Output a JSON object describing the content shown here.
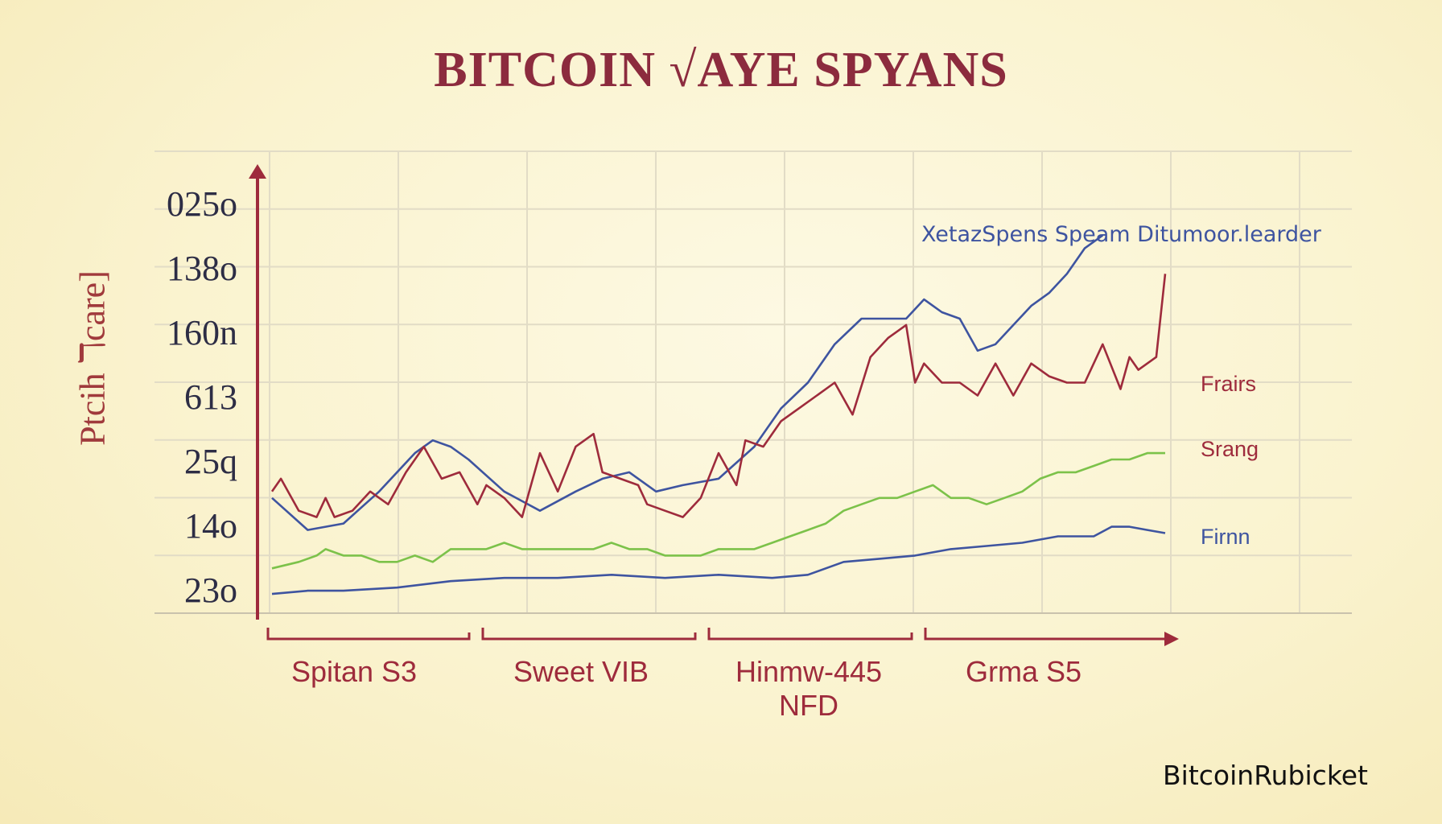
{
  "chart_data": {
    "type": "line",
    "title": "BITCOIN √AYE SPYANS",
    "ylabel": "Ptcih ℸcare]",
    "y_ticks": [
      "025o",
      "138o",
      "160n",
      "613",
      "25q",
      "14o",
      "23o"
    ],
    "x_groups": [
      {
        "label": "Spitan S3"
      },
      {
        "label": "Sweet VIB"
      },
      {
        "label": "Hinmw-445\nNFD"
      },
      {
        "label": "Grma S5"
      }
    ],
    "ylim": [
      0,
      7
    ],
    "xlim": [
      0,
      100
    ],
    "grid": true,
    "series": [
      {
        "name": "XetazSpens  Speam Ditumoor.learder",
        "color": "#3e54a0",
        "x": [
          0,
          4,
          8,
          12,
          16,
          18,
          20,
          22,
          26,
          30,
          34,
          37,
          40,
          43,
          46,
          50,
          54,
          57,
          60,
          63,
          66,
          69,
          71,
          73,
          75,
          77,
          79,
          81,
          83,
          85,
          87,
          89,
          91,
          93
        ],
        "y": [
          1.8,
          1.3,
          1.4,
          1.9,
          2.5,
          2.7,
          2.6,
          2.4,
          1.9,
          1.6,
          1.9,
          2.1,
          2.2,
          1.9,
          2.0,
          2.1,
          2.6,
          3.2,
          3.6,
          4.2,
          4.6,
          4.6,
          4.6,
          4.9,
          4.7,
          4.6,
          4.1,
          4.2,
          4.5,
          4.8,
          5.0,
          5.3,
          5.7,
          5.9
        ]
      },
      {
        "name": "Frairs",
        "color": "#9e2b3c",
        "x": [
          0,
          1,
          3,
          5,
          6,
          7,
          9,
          11,
          13,
          15,
          17,
          19,
          21,
          23,
          24,
          26,
          28,
          30,
          32,
          34,
          36,
          37,
          39,
          41,
          42,
          44,
          46,
          48,
          50,
          52,
          53,
          55,
          57,
          59,
          61,
          63,
          65,
          67,
          69,
          71,
          72,
          73,
          75,
          77,
          79,
          81,
          83,
          85,
          87,
          89,
          91,
          93,
          95,
          96,
          97,
          99,
          100
        ],
        "y": [
          1.9,
          2.1,
          1.6,
          1.5,
          1.8,
          1.5,
          1.6,
          1.9,
          1.7,
          2.2,
          2.6,
          2.1,
          2.2,
          1.7,
          2.0,
          1.8,
          1.5,
          2.5,
          1.9,
          2.6,
          2.8,
          2.2,
          2.1,
          2.0,
          1.7,
          1.6,
          1.5,
          1.8,
          2.5,
          2.0,
          2.7,
          2.6,
          3.0,
          3.2,
          3.4,
          3.6,
          3.1,
          4.0,
          4.3,
          4.5,
          3.6,
          3.9,
          3.6,
          3.6,
          3.4,
          3.9,
          3.4,
          3.9,
          3.7,
          3.6,
          3.6,
          4.2,
          3.5,
          4.0,
          3.8,
          4.0,
          5.3
        ]
      },
      {
        "name": "Srang",
        "color": "#7cc24a",
        "x": [
          0,
          3,
          5,
          6,
          8,
          10,
          12,
          14,
          16,
          18,
          20,
          22,
          24,
          26,
          28,
          30,
          32,
          34,
          36,
          38,
          40,
          42,
          44,
          46,
          48,
          50,
          52,
          54,
          56,
          58,
          60,
          62,
          64,
          66,
          68,
          70,
          72,
          74,
          76,
          78,
          80,
          82,
          84,
          86,
          88,
          90,
          92,
          94,
          96,
          98,
          100
        ],
        "y": [
          0.7,
          0.8,
          0.9,
          1.0,
          0.9,
          0.9,
          0.8,
          0.8,
          0.9,
          0.8,
          1.0,
          1.0,
          1.0,
          1.1,
          1.0,
          1.0,
          1.0,
          1.0,
          1.0,
          1.1,
          1.0,
          1.0,
          0.9,
          0.9,
          0.9,
          1.0,
          1.0,
          1.0,
          1.1,
          1.2,
          1.3,
          1.4,
          1.6,
          1.7,
          1.8,
          1.8,
          1.9,
          2.0,
          1.8,
          1.8,
          1.7,
          1.8,
          1.9,
          2.1,
          2.2,
          2.2,
          2.3,
          2.4,
          2.4,
          2.5,
          2.5
        ]
      },
      {
        "name": "Firnn",
        "color": "#3e54a0",
        "x": [
          0,
          4,
          8,
          14,
          20,
          26,
          32,
          38,
          44,
          50,
          56,
          60,
          64,
          68,
          72,
          76,
          80,
          84,
          88,
          92,
          94,
          96,
          98,
          100
        ],
        "y": [
          0.3,
          0.35,
          0.35,
          0.4,
          0.5,
          0.55,
          0.55,
          0.6,
          0.55,
          0.6,
          0.55,
          0.6,
          0.8,
          0.85,
          0.9,
          1.0,
          1.05,
          1.1,
          1.2,
          1.2,
          1.35,
          1.35,
          1.3,
          1.25
        ]
      }
    ]
  },
  "watermark": "BitcoinRubicket"
}
